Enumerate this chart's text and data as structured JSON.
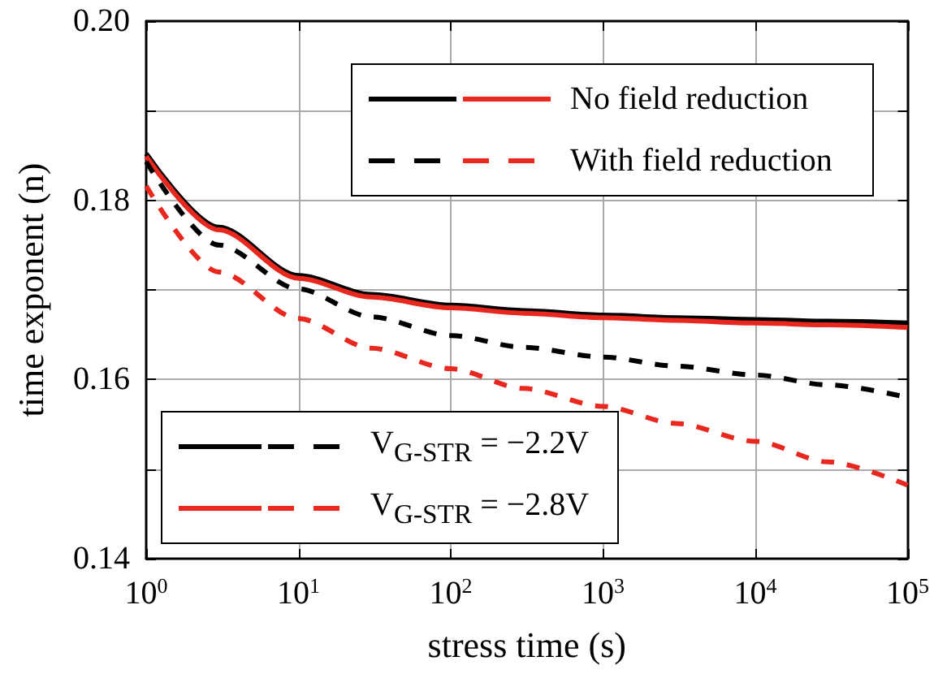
{
  "chart_data": {
    "type": "line",
    "xlabel": "stress time (s)",
    "ylabel": "time exponent (n)",
    "log": "x",
    "xlim": [
      1,
      100000
    ],
    "xticks": [
      {
        "value": 1,
        "label": "10$^{0}$"
      },
      {
        "value": 10,
        "label": "10$^{1}$"
      },
      {
        "value": 100,
        "label": "10$^{2}$"
      },
      {
        "value": 1000,
        "label": "10$^{3}$"
      },
      {
        "value": 10000,
        "label": "10$^{4}$"
      },
      {
        "value": 100000,
        "label": "10$^{5}$"
      }
    ],
    "ylim": [
      0.14,
      0.2
    ],
    "yticks": [
      {
        "value": 0.14,
        "label": "0.14"
      },
      {
        "value": 0.15,
        "label": null
      },
      {
        "value": 0.16,
        "label": "0.16"
      },
      {
        "value": 0.17,
        "label": null
      },
      {
        "value": 0.18,
        "label": "0.18"
      },
      {
        "value": 0.19,
        "label": null
      },
      {
        "value": 0.2,
        "label": "0.20"
      }
    ],
    "grid": true,
    "marker": "none",
    "annotations": [
      "No field reduction",
      "With field reduction",
      "V$_{G-STR}$ = −2.2V",
      "V$_{G-STR}$ = −2.8V"
    ],
    "x": [
      1,
      3,
      10,
      30,
      100,
      300,
      1000,
      3000,
      10000,
      30000,
      100000
    ],
    "series": [
      {
        "color": "#000000",
        "line_style": "solid",
        "values": [
          0.1852,
          0.177,
          0.1716,
          0.1695,
          0.1683,
          0.1677,
          0.1672,
          0.1669,
          0.1667,
          0.1665,
          0.1663
        ]
      },
      {
        "color": "#e8281e",
        "line_style": "solid",
        "values": [
          0.1849,
          0.1767,
          0.1713,
          0.1692,
          0.168,
          0.1674,
          0.1669,
          0.1666,
          0.1663,
          0.1661,
          0.1658
        ]
      },
      {
        "color": "#000000",
        "line_style": "dashed",
        "values": [
          0.1843,
          0.175,
          0.1701,
          0.167,
          0.1649,
          0.1636,
          0.1625,
          0.1615,
          0.1605,
          0.1594,
          0.158
        ]
      },
      {
        "color": "#e8281e",
        "line_style": "dashed",
        "values": [
          0.1816,
          0.172,
          0.1668,
          0.1635,
          0.1612,
          0.159,
          0.157,
          0.1551,
          0.1531,
          0.1508,
          0.1482
        ]
      }
    ]
  }
}
